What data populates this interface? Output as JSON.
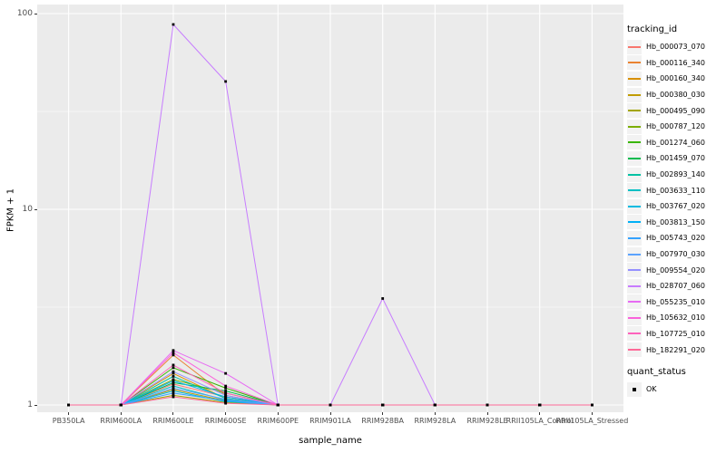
{
  "figure": {
    "background": "#FFFFFF",
    "panel_background": "#EBEBEB",
    "grid_color": "#FFFFFF",
    "axis_text_color": "#4D4D4D",
    "point_color": "#000000",
    "legend_key_background": "#F2F2F2"
  },
  "legend": {
    "tracking_title": "tracking_id",
    "quant_title": "quant_status",
    "quant_items": [
      {
        "label": "OK",
        "marker": "black-square"
      }
    ]
  },
  "chart_data": {
    "type": "line",
    "title": "",
    "xlabel": "sample_name",
    "ylabel": "FPKM + 1",
    "y_scale": "log10",
    "y_ticks": [
      1,
      10,
      100
    ],
    "y_minor_gridlines": [
      3.1623,
      31.623
    ],
    "ylim": [
      0.92,
      111
    ],
    "grid": true,
    "legend_position": "right",
    "point_marker": "black-square",
    "x_categories": [
      "PB350LA",
      "RRIM600LA",
      "RRIM600LE",
      "RRIM600SE",
      "RRIM600PE",
      "RRIM901LA",
      "RRIM928BA",
      "RRIM928LA",
      "RRIM928LE",
      "RRII105LA_Control",
      "RRII105LA_Stressed"
    ],
    "series": [
      {
        "name": "Hb_000073_070",
        "color": "#F8766D",
        "values": [
          1,
          1,
          1.28,
          1.1,
          1,
          1,
          1,
          1,
          1,
          1,
          1
        ]
      },
      {
        "name": "Hb_000116_340",
        "color": "#EA8331",
        "values": [
          1,
          1,
          1.8,
          1.12,
          1,
          1,
          1,
          1,
          1,
          1,
          1
        ]
      },
      {
        "name": "Hb_000160_340",
        "color": "#D89000",
        "values": [
          1,
          1,
          1.45,
          1.08,
          1,
          1,
          1,
          1,
          1,
          1,
          1
        ]
      },
      {
        "name": "Hb_000380_030",
        "color": "#C09B00",
        "values": [
          1,
          1,
          1.2,
          1.05,
          1,
          1,
          1,
          1,
          1,
          1,
          1
        ]
      },
      {
        "name": "Hb_000495_090",
        "color": "#A3A500",
        "values": [
          1,
          1,
          1.12,
          1.03,
          1,
          1,
          1,
          1,
          1,
          1,
          1
        ]
      },
      {
        "name": "Hb_000787_120",
        "color": "#7CAE00",
        "values": [
          1,
          1,
          1.35,
          1.15,
          1,
          1,
          1,
          1,
          1,
          1,
          1
        ]
      },
      {
        "name": "Hb_001274_060",
        "color": "#39B600",
        "values": [
          1,
          1,
          1.55,
          1.22,
          1,
          1,
          1,
          1,
          1,
          1,
          1
        ]
      },
      {
        "name": "Hb_001459_070",
        "color": "#00BB4E",
        "values": [
          1,
          1,
          1.3,
          1.18,
          1,
          1,
          1,
          1,
          1,
          1,
          1
        ]
      },
      {
        "name": "Hb_002893_140",
        "color": "#00C1A3",
        "values": [
          1,
          1,
          1.4,
          1.08,
          1,
          1,
          1,
          1,
          1,
          1,
          1
        ]
      },
      {
        "name": "Hb_003633_110",
        "color": "#00BFC4",
        "values": [
          1,
          1,
          1.25,
          1.06,
          1,
          1,
          1,
          1,
          1,
          1,
          1
        ]
      },
      {
        "name": "Hb_003767_020",
        "color": "#00BAE0",
        "values": [
          1,
          1,
          1.18,
          1.04,
          1,
          1,
          1,
          1,
          1,
          1,
          1
        ]
      },
      {
        "name": "Hb_003813_150",
        "color": "#00B0F6",
        "values": [
          1,
          1,
          1.33,
          1.1,
          1,
          1,
          1,
          1,
          1,
          1,
          1
        ]
      },
      {
        "name": "Hb_005743_020",
        "color": "#35A2FF",
        "values": [
          1,
          1,
          1.15,
          1.05,
          1,
          1,
          1,
          1,
          1,
          1,
          1
        ]
      },
      {
        "name": "Hb_007970_030",
        "color": "#5BA3FF",
        "values": [
          1,
          1,
          1.22,
          1.07,
          1,
          1,
          1,
          1,
          1,
          1,
          1
        ]
      },
      {
        "name": "Hb_009554_020",
        "color": "#9590FF",
        "values": [
          1,
          1,
          1.48,
          1.12,
          1,
          1,
          1,
          1,
          1,
          1,
          1
        ]
      },
      {
        "name": "Hb_028707_060",
        "color": "#C77CFF",
        "values": [
          1,
          1,
          88,
          45,
          1,
          1,
          3.5,
          1,
          1,
          1,
          1
        ]
      },
      {
        "name": "Hb_055235_010",
        "color": "#E76BF3",
        "values": [
          1,
          1,
          1.9,
          1.45,
          1,
          1,
          1,
          1,
          1,
          1,
          1
        ]
      },
      {
        "name": "Hb_105632_010",
        "color": "#FA62DB",
        "values": [
          1,
          1,
          1.85,
          1.25,
          1,
          1,
          1,
          1,
          1,
          1,
          1
        ]
      },
      {
        "name": "Hb_107725_010",
        "color": "#FF62BC",
        "values": [
          1,
          1,
          1.6,
          1.15,
          1,
          1,
          1,
          1,
          1,
          1,
          1
        ]
      },
      {
        "name": "Hb_182291_020",
        "color": "#FF6A98",
        "values": [
          1,
          1,
          1.1,
          1.02,
          1,
          1,
          1,
          1,
          1,
          1,
          1
        ]
      }
    ]
  }
}
